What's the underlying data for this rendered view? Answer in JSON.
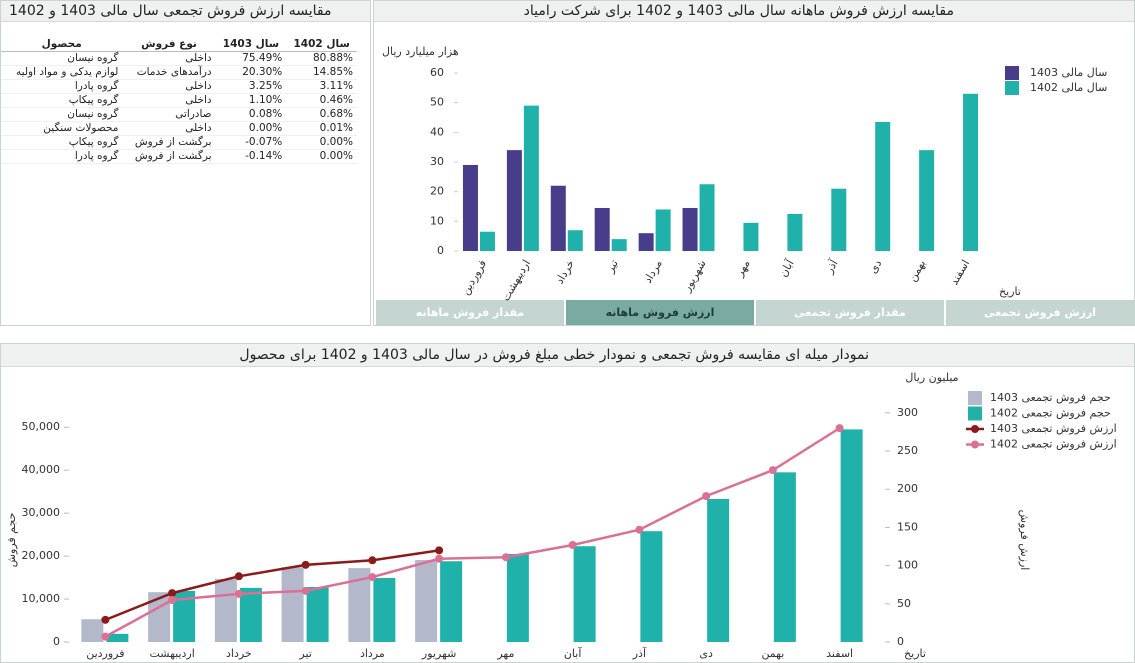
{
  "table_panel": {
    "title": "مقایسه ارزش فروش تجمعی سال مالی 1403 و 1402",
    "columns": [
      "محصول",
      "نوع فروش",
      "سال 1403",
      "سال 1402"
    ],
    "rows": [
      [
        "گروه نیسان",
        "داخلی",
        "75.49%",
        "80.88%"
      ],
      [
        "لوازم یدکی و مواد اولیه",
        "درآمدهای خدمات",
        "20.30%",
        "14.85%"
      ],
      [
        "گروه پادرا",
        "داخلی",
        "3.25%",
        "3.11%"
      ],
      [
        "گروه پیکاپ",
        "داخلی",
        "1.10%",
        "0.46%"
      ],
      [
        "گروه نیسان",
        "صادراتی",
        "0.08%",
        "0.68%"
      ],
      [
        "محصولات سنگین",
        "داخلی",
        "0.00%",
        "0.01%"
      ],
      [
        "گروه پیکاپ",
        "برگشت از فروش",
        "-0.07%",
        "0.00%"
      ],
      [
        "گروه پادرا",
        "برگشت از فروش",
        "-0.14%",
        "0.00%"
      ]
    ]
  },
  "tabs": [
    "ارزش فروش تجمعی",
    "مقدار فروش تجمعی",
    "ارزش فروش ماهانه",
    "مقدار فروش ماهانه"
  ],
  "active_tab": 2,
  "chart_data": [
    {
      "type": "bar",
      "title": "مقایسه ارزش فروش ماهانه سال مالی 1403 و 1402 برای شرکت رامیاد",
      "y_label": "هزار میلیارد ریال",
      "x_label": "تاریخ",
      "categories": [
        "فروردین",
        "اردیبهشت",
        "خرداد",
        "تیر",
        "مرداد",
        "شهریور",
        "مهر",
        "آبان",
        "آذر",
        "دی",
        "بهمن",
        "اسفند"
      ],
      "series": [
        {
          "name": "سال مالی 1403",
          "color": "#483d8b",
          "values": [
            29,
            34,
            22,
            14.5,
            6,
            14.5,
            null,
            null,
            null,
            null,
            null,
            null
          ]
        },
        {
          "name": "سال مالی 1402",
          "color": "#20b2aa",
          "values": [
            6.5,
            49,
            7,
            4,
            14,
            22.5,
            9.5,
            12.5,
            21,
            43.5,
            34,
            53
          ]
        }
      ],
      "ylim": [
        0,
        60
      ],
      "yticks": [
        0,
        10,
        20,
        30,
        40,
        50,
        60
      ],
      "legend": "right"
    },
    {
      "type": "combo",
      "title": "نمودار میله ای مقایسه فروش تجمعی و نمودار خطی مبلغ فروش در سال مالی 1403 و 1402 برای محصول",
      "y_label": "حجم فروش",
      "y2_label": "ارزش فروش",
      "y2_unit": "میلیون ریال",
      "x_label": "تاریخ",
      "categories": [
        "فروردین",
        "اردیبهشت",
        "خرداد",
        "تیر",
        "مرداد",
        "شهریور",
        "مهر",
        "آبان",
        "آذر",
        "دی",
        "بهمن",
        "اسفند"
      ],
      "series": [
        {
          "name": "حجم فروش تجمعی 1403",
          "kind": "bar",
          "color": "#b3b9cb",
          "values": [
            5300,
            11600,
            14700,
            17400,
            17200,
            19100,
            null,
            null,
            null,
            null,
            null,
            null
          ]
        },
        {
          "name": "حجم فروش تجمعی 1402",
          "kind": "bar",
          "color": "#20b2aa",
          "values": [
            1900,
            11900,
            12600,
            12800,
            14900,
            18800,
            20500,
            22300,
            25800,
            33300,
            39500,
            49500
          ]
        },
        {
          "name": "ارزش فروش تجمعی 1403",
          "kind": "line",
          "axis": "y2",
          "color": "#8b1a1a",
          "values": [
            29,
            64,
            86,
            101,
            107,
            120,
            null,
            null,
            null,
            null,
            null,
            null
          ]
        },
        {
          "name": "ارزش فروش تجمعی 1402",
          "kind": "line",
          "axis": "y2",
          "color": "#db7093",
          "values": [
            7,
            55,
            63,
            67,
            85,
            109,
            111,
            127,
            147,
            191,
            225,
            280
          ]
        }
      ],
      "ylim": [
        0,
        61000
      ],
      "yticks": [
        0,
        {
          "value": 10000,
          "label": "10,000"
        },
        {
          "value": 20000,
          "label": "20,000"
        },
        {
          "value": 30000,
          "label": "30,000"
        },
        {
          "value": 40000,
          "label": "40,000"
        },
        {
          "value": 50000,
          "label": "50,000"
        }
      ],
      "y2lim": [
        0,
        343
      ],
      "y2ticks": [
        0,
        50,
        100,
        150,
        200,
        250,
        300
      ],
      "legend": "right"
    }
  ]
}
